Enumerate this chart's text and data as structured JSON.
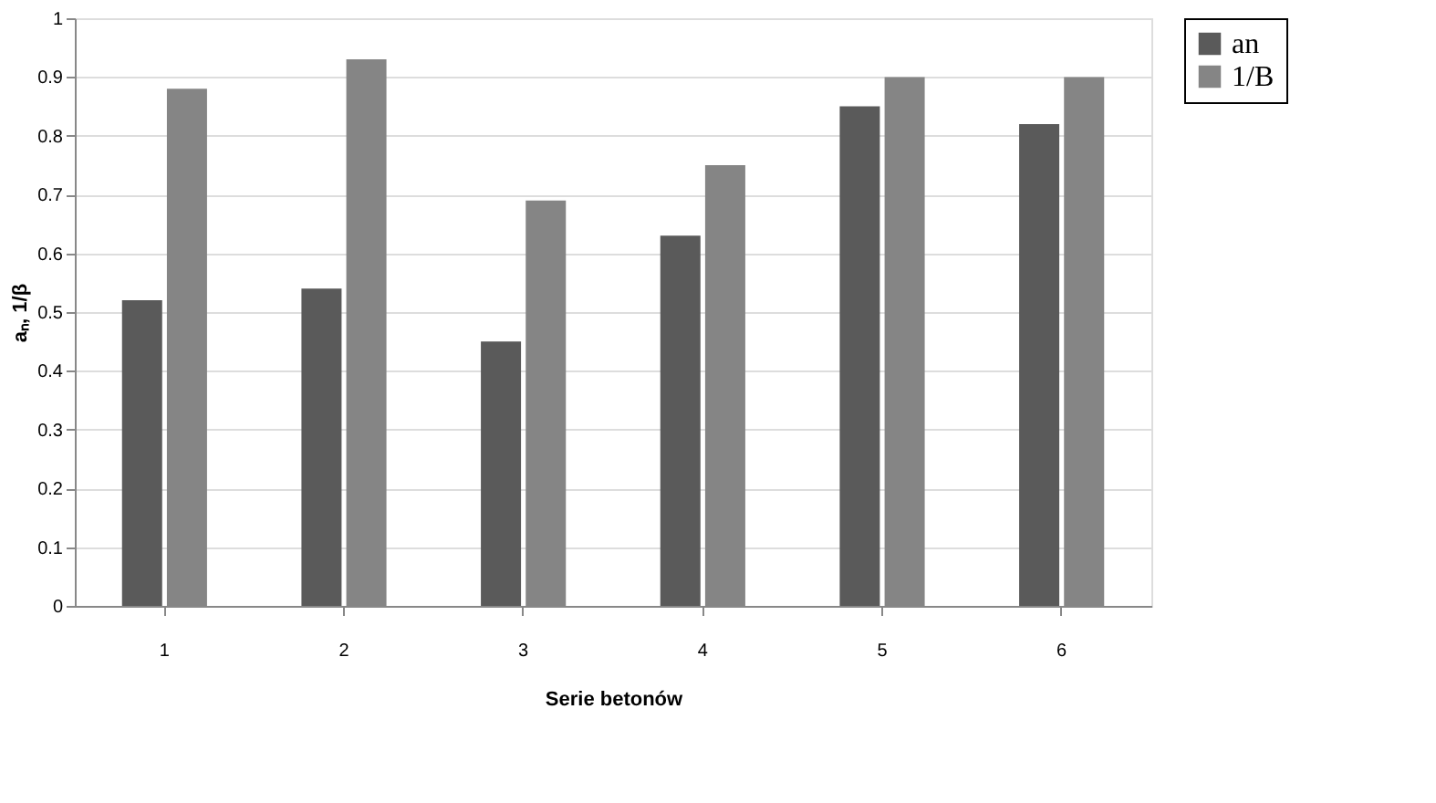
{
  "chart_data": {
    "type": "bar",
    "xlabel": "Serie betonów",
    "ylabel": "aₙ, 1/β",
    "categories": [
      "1",
      "2",
      "3",
      "4",
      "5",
      "6"
    ],
    "series": [
      {
        "name": "an",
        "color": "#5a5a5a",
        "values": [
          0.52,
          0.54,
          0.45,
          0.63,
          0.85,
          0.82
        ]
      },
      {
        "name": "1/B",
        "color": "#858585",
        "values": [
          0.88,
          0.93,
          0.69,
          0.75,
          0.9,
          0.9
        ]
      }
    ],
    "ylim": [
      0,
      1
    ],
    "yticks": [
      0,
      0.1,
      0.2,
      0.3,
      0.4,
      0.5,
      0.6,
      0.7,
      0.8,
      0.9,
      1
    ],
    "grid": "y",
    "legend": "right"
  }
}
